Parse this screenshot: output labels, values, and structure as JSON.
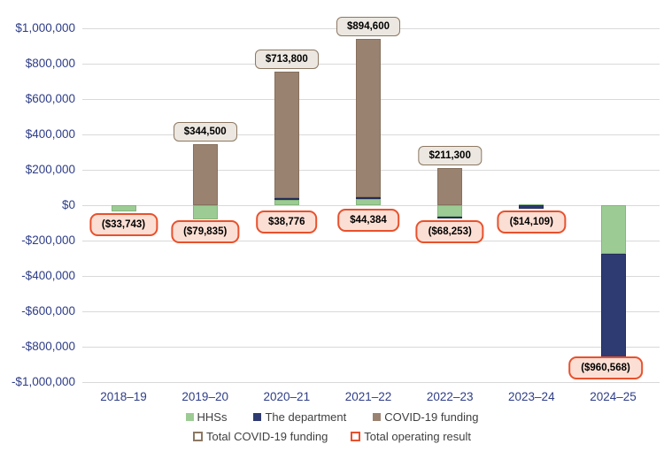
{
  "chart_data": {
    "type": "bar",
    "stacked": true,
    "title": "",
    "xlabel": "",
    "ylabel": "",
    "categories": [
      "2018–19",
      "2019–20",
      "2020–21",
      "2021–22",
      "2022–23",
      "2023–24",
      "2024–25"
    ],
    "series": [
      {
        "key": "hhs",
        "name": "HHSs",
        "color": "#9ccc94",
        "border": "#84b57c",
        "values": [
          -33743,
          -79835,
          32000,
          36000,
          -64000,
          5000,
          -275000
        ]
      },
      {
        "key": "department",
        "name": "The department",
        "color": "#2e3b72",
        "border": "#222c58",
        "values": [
          0,
          0,
          6776,
          8384,
          -4253,
          -19109,
          -685568
        ]
      },
      {
        "key": "covid",
        "name": "COVID-19 funding",
        "color": "#9a8271",
        "border": "#86705c",
        "values": [
          0,
          344500,
          713800,
          894600,
          211300,
          0,
          0
        ]
      }
    ],
    "annotations": {
      "total_covid_funding": {
        "legend_label": "Total COVID-19 funding",
        "items": [
          {
            "category": "2019–20",
            "text": "$344,500",
            "value": 344500
          },
          {
            "category": "2020–21",
            "text": "$713,800",
            "value": 713800
          },
          {
            "category": "2021–22",
            "text": "$894,600",
            "value": 894600
          },
          {
            "category": "2022–23",
            "text": "$211,300",
            "value": 211300
          }
        ]
      },
      "total_operating_result": {
        "legend_label": "Total operating result",
        "items": [
          {
            "category": "2018–19",
            "text": "($33,743)",
            "value": -33743
          },
          {
            "category": "2019–20",
            "text": "($79,835)",
            "value": -79835
          },
          {
            "category": "2020–21",
            "text": "$38,776",
            "value": 38776
          },
          {
            "category": "2021–22",
            "text": "$44,384",
            "value": 44384
          },
          {
            "category": "2022–23",
            "text": "($68,253)",
            "value": -68253
          },
          {
            "category": "2023–24",
            "text": "($14,109)",
            "value": -14109
          },
          {
            "category": "2024–25",
            "text": "($960,568)",
            "value": -960568
          }
        ]
      }
    },
    "ylim": [
      -1000000,
      1000000
    ],
    "ytick_step": 200000,
    "y_tick_labels": [
      "$1,000,000",
      "$800,000",
      "$600,000",
      "$400,000",
      "$200,000",
      "$0",
      "-$200,000",
      "-$400,000",
      "-$600,000",
      "-$800,000",
      "-$1,000,000"
    ],
    "grid": true,
    "legend_position": "bottom"
  },
  "legend": {
    "hhs": "HHSs",
    "department": "The department",
    "covid": "COVID-19 funding",
    "covid_total": "Total COVID-19 funding",
    "operating_result": "Total operating result"
  },
  "colors": {
    "hhs": "#9ccc94",
    "department": "#2e3b72",
    "covid": "#9a8271",
    "covid_box_bg": "#ece7e0",
    "covid_box_border": "#8c7862",
    "result_box_bg": "#fcdfd4",
    "result_box_border": "#e8512d",
    "axis_text": "#2e3d87",
    "gridline": "#d9d9d9",
    "legend_text": "#404040"
  }
}
